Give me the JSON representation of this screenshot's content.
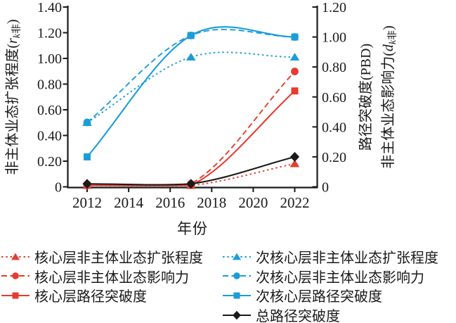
{
  "figure": {
    "background": "#ffffff"
  },
  "colors": {
    "red": "#e63c2f",
    "blue": "#1b9dd9",
    "black": "#1a1a1a"
  },
  "chart_data": {
    "type": "line",
    "x_years": [
      2012,
      2017,
      2022
    ],
    "axes": {
      "x": {
        "title": "年份",
        "tick_labels": [
          "2012",
          "2014",
          "2016",
          "2018",
          "2020",
          "2022"
        ],
        "tick_values": [
          2012,
          2014,
          2016,
          2018,
          2020,
          2022
        ]
      },
      "left": {
        "title_prefix": "非主体业态扩张程度(",
        "title_var": "r",
        "title_sub": "k非",
        "title_suffix": ")",
        "tick_labels": [
          "0",
          "0.20",
          "0.40",
          "0.60",
          "0.80",
          "1.00",
          "1.20",
          "1.40"
        ],
        "tick_step": 0.2,
        "range": [
          0,
          1.4
        ]
      },
      "right": {
        "title_line1": "路径突破度(PBD)",
        "title2_prefix": "非主体业态影响力(",
        "title2_var": "d",
        "title2_sub": "k非",
        "title2_suffix": ")",
        "tick_labels": [
          "0",
          "0.20",
          "0.40",
          "0.60",
          "0.80",
          "1.00",
          "1.20"
        ],
        "tick_step": 0.2,
        "range": [
          0,
          1.2
        ]
      }
    },
    "series": [
      {
        "id": "subcore-expansion",
        "label": "次核心层非主体业态扩张程度",
        "color": "blue",
        "axis": "left",
        "line": "dotted",
        "marker": "triangle",
        "values": [
          0.5,
          1.01,
          1.01
        ]
      },
      {
        "id": "subcore-influence",
        "label": "次核心层非主体业态影响力",
        "color": "blue",
        "axis": "right",
        "line": "dashed",
        "marker": "circle",
        "values": [
          0.43,
          1.01,
          1.0
        ]
      },
      {
        "id": "subcore-pbd",
        "label": "次核心层路径突破度",
        "color": "blue",
        "axis": "right",
        "line": "solid",
        "marker": "square",
        "values": [
          0.2,
          1.01,
          1.0
        ]
      },
      {
        "id": "core-expansion",
        "label": "核心层非主体业态扩张程度",
        "color": "red",
        "axis": "left",
        "line": "dotted",
        "marker": "triangle",
        "values": [
          0.01,
          0.01,
          0.18
        ]
      },
      {
        "id": "core-influence",
        "label": "核心层非主体业态影响力",
        "color": "red",
        "axis": "right",
        "line": "dashed",
        "marker": "circle",
        "values": [
          0.01,
          0.02,
          0.77
        ]
      },
      {
        "id": "core-pbd",
        "label": "核心层路径突破度",
        "color": "red",
        "axis": "right",
        "line": "solid",
        "marker": "square",
        "values": [
          0.01,
          0.01,
          0.64
        ]
      },
      {
        "id": "total-pbd",
        "label": "总路径突破度",
        "color": "black",
        "axis": "right",
        "line": "solid",
        "marker": "diamond",
        "values": [
          0.02,
          0.02,
          0.2
        ]
      }
    ],
    "legend": {
      "column1": [
        "core-expansion",
        "core-influence",
        "core-pbd"
      ],
      "column2": [
        "subcore-expansion",
        "subcore-influence",
        "subcore-pbd",
        "total-pbd"
      ]
    }
  }
}
